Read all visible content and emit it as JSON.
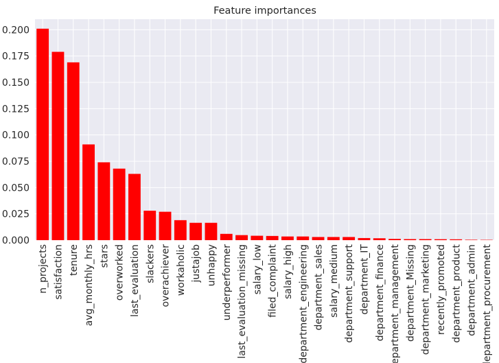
{
  "chart_data": {
    "type": "bar",
    "title": "Feature importances",
    "xlabel": "",
    "ylabel": "",
    "ylim": [
      0,
      0.21
    ],
    "yticks": [
      "0.000",
      "0.025",
      "0.050",
      "0.075",
      "0.100",
      "0.125",
      "0.150",
      "0.175",
      "0.200"
    ],
    "grid": true,
    "legend": "none",
    "bar_color": "#ff0000",
    "background_color": "#eaeaf2",
    "categories": [
      "n_projects",
      "satisfaction",
      "tenure",
      "avg_monthly_hrs",
      "stars",
      "overworked",
      "last_evaluation",
      "slackers",
      "overachiever",
      "workaholic",
      "justajob",
      "unhappy",
      "underperformer",
      "last_evaluation_missing",
      "salary_low",
      "filed_complaint",
      "salary_high",
      "department_engineering",
      "department_sales",
      "salary_medium",
      "department_support",
      "department_IT",
      "department_finance",
      "department_management",
      "department_Missing",
      "department_marketing",
      "recently_promoted",
      "department_product",
      "department_admin",
      "department_procurement"
    ],
    "values": [
      0.201,
      0.179,
      0.169,
      0.091,
      0.074,
      0.068,
      0.063,
      0.028,
      0.027,
      0.019,
      0.0165,
      0.0165,
      0.006,
      0.0048,
      0.0042,
      0.004,
      0.0035,
      0.0035,
      0.003,
      0.003,
      0.003,
      0.002,
      0.0018,
      0.0012,
      0.001,
      0.001,
      0.0009,
      0.0008,
      0.0004,
      0.0003
    ]
  }
}
